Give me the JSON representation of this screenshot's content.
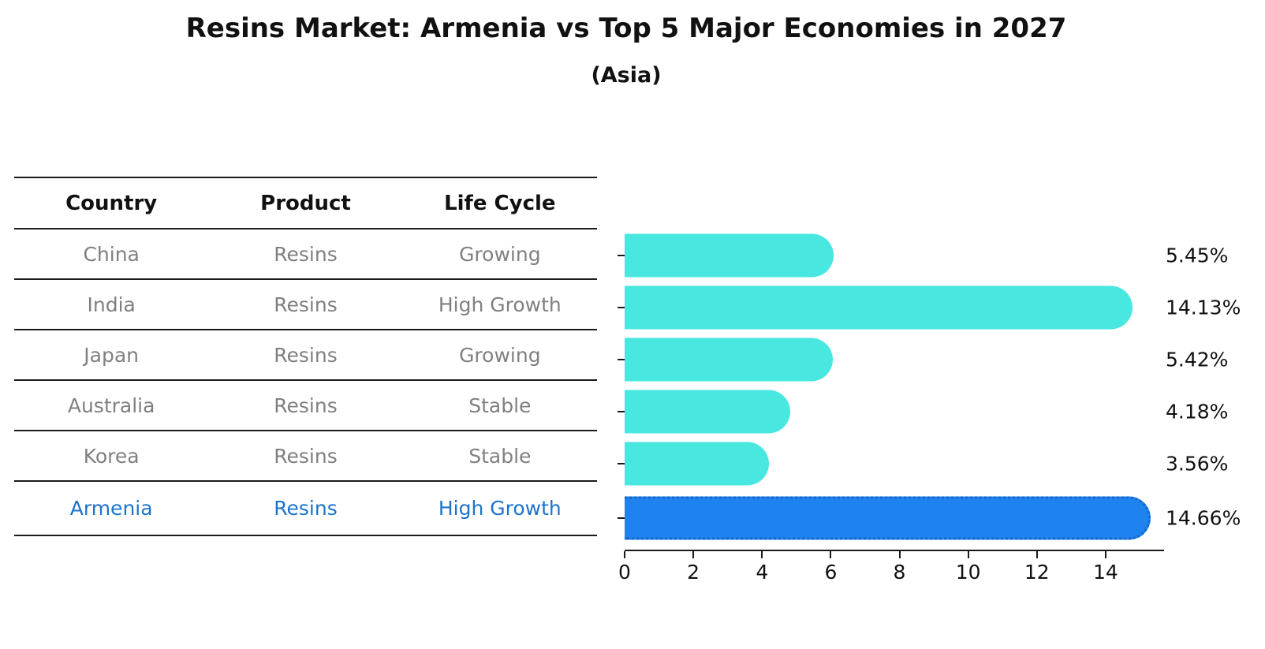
{
  "title": "Resins Market: Armenia vs Top 5 Major Economies in 2027",
  "subtitle": "(Asia)",
  "table": {
    "headers": [
      "Country",
      "Product",
      "Life Cycle"
    ],
    "rows": [
      {
        "country": "China",
        "product": "Resins",
        "life_cycle": "Growing",
        "highlight": false
      },
      {
        "country": "India",
        "product": "Resins",
        "life_cycle": "High Growth",
        "highlight": false
      },
      {
        "country": "Japan",
        "product": "Resins",
        "life_cycle": "Growing",
        "highlight": false
      },
      {
        "country": "Australia",
        "product": "Resins",
        "life_cycle": "Stable",
        "highlight": false
      },
      {
        "country": "Korea",
        "product": "Resins",
        "life_cycle": "Stable",
        "highlight": false
      },
      {
        "country": "Armenia",
        "product": "Resins",
        "life_cycle": "High Growth",
        "highlight": true
      }
    ]
  },
  "chart_data": {
    "type": "bar",
    "orientation": "horizontal",
    "title": "Resins Market: Armenia vs Top 5 Major Economies in 2027",
    "subtitle": "(Asia)",
    "categories": [
      "China",
      "India",
      "Japan",
      "Australia",
      "Korea",
      "Armenia"
    ],
    "values": [
      5.45,
      14.13,
      5.42,
      4.18,
      3.56,
      14.66
    ],
    "value_labels": [
      "5.45%",
      "14.13%",
      "5.42%",
      "4.18%",
      "3.56%",
      "14.66%"
    ],
    "xticks": [
      0,
      2,
      4,
      6,
      8,
      10,
      12,
      14
    ],
    "xlim": [
      0,
      15.7
    ],
    "grid": false,
    "legend": false,
    "bar_color": "#48E7E0",
    "highlight_color": "#1E83EE",
    "highlight_edge_color": "#1565C8",
    "highlight_text_color": "#1C74CC",
    "highlight_index": 5
  },
  "colors": {
    "text": "#111111",
    "muted_text": "#808080",
    "line": "#1A1A1A",
    "background": "#FFFFFF"
  }
}
